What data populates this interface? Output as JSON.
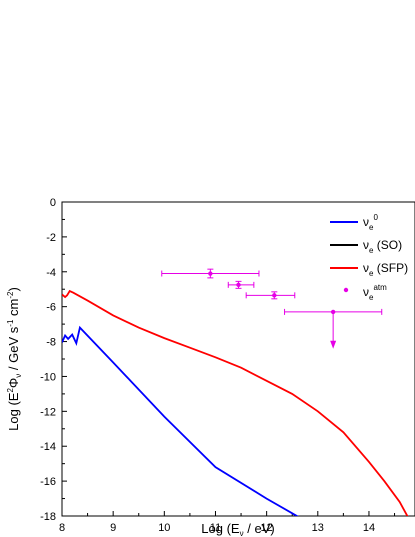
{
  "chart_data": {
    "type": "line",
    "xlabel": "Log (Eν / eV)",
    "ylabel": "Log (E²Φν / GeV s⁻¹ cm⁻²)",
    "xlim": [
      8,
      14.9
    ],
    "ylim": [
      -18,
      0
    ],
    "x_ticks": [
      8,
      9,
      10,
      11,
      12,
      13,
      14
    ],
    "y_ticks": [
      0,
      -2,
      -4,
      -6,
      -8,
      -10,
      -12,
      -14,
      -16,
      -18
    ],
    "legend_position": "top-right",
    "series": [
      {
        "name": "νe⁰",
        "color": "#0000ff",
        "x": [
          8.0,
          8.06,
          8.12,
          8.2,
          8.28,
          8.35,
          9.0,
          10.0,
          11.0,
          12.0,
          12.65
        ],
        "y": [
          -8.05,
          -7.65,
          -7.85,
          -7.6,
          -8.1,
          -7.2,
          -9.2,
          -12.3,
          -15.2,
          -17.0,
          -18.1
        ]
      },
      {
        "name": "νe (SO)",
        "color": "#000000",
        "x": [],
        "y": []
      },
      {
        "name": "νe (SFP)",
        "color": "#ff0000",
        "x": [
          8.0,
          8.06,
          8.1,
          8.15,
          8.22,
          8.5,
          9.0,
          9.5,
          10.0,
          10.5,
          11.0,
          11.5,
          12.0,
          12.5,
          13.0,
          13.5,
          14.0,
          14.3,
          14.6,
          14.9
        ],
        "y": [
          -5.3,
          -5.45,
          -5.35,
          -5.1,
          -5.2,
          -5.65,
          -6.5,
          -7.2,
          -7.8,
          -8.35,
          -8.9,
          -9.5,
          -10.25,
          -11.0,
          -12.0,
          -13.2,
          -14.9,
          -16.0,
          -17.2,
          -18.8
        ]
      }
    ],
    "atm_points": {
      "name": "νe^atm",
      "color": "#e600e6",
      "points": [
        {
          "x": 10.9,
          "y": -4.1,
          "xerr": [
            9.95,
            11.85
          ],
          "yerr": 0.25
        },
        {
          "x": 11.45,
          "y": -4.75,
          "xerr": [
            11.25,
            11.75
          ],
          "yerr": 0.2
        },
        {
          "x": 12.15,
          "y": -5.35,
          "xerr": [
            11.6,
            12.55
          ],
          "yerr": 0.2
        },
        {
          "x": 13.3,
          "y": -6.3,
          "xerr": [
            12.35,
            14.25
          ],
          "arrow_to": -8.3
        }
      ]
    }
  }
}
